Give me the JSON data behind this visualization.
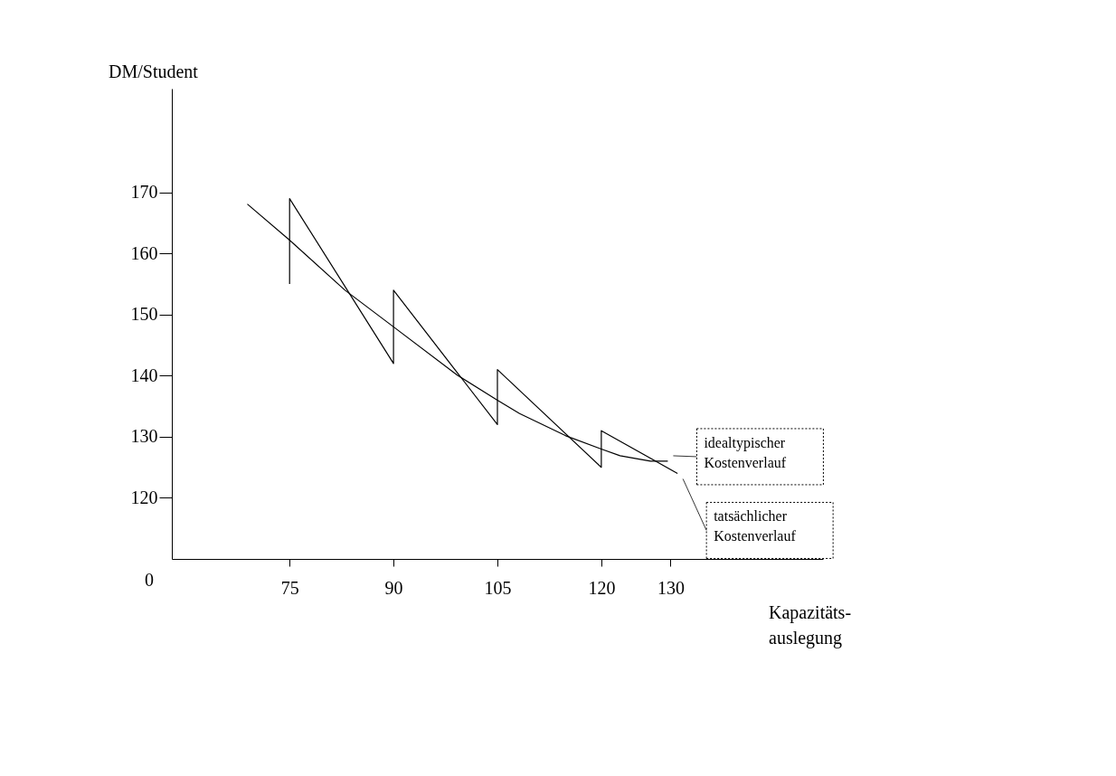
{
  "chart_data": {
    "type": "line",
    "xlabel": "Kapazitäts-\nauslegung",
    "ylabel": "DM/Student",
    "series": [
      {
        "name": "idealtypischer Kostenverlauf",
        "color": "#000000",
        "x": [
          68.9,
          75,
          83,
          90,
          99.2,
          105,
          108.2,
          114.8,
          120,
          122.7,
          127.1,
          129.6
        ],
        "values": [
          168.1,
          162.2,
          154.0,
          148.0,
          140.1,
          136.0,
          133.8,
          130.2,
          128.0,
          126.9,
          126.0,
          126.0
        ]
      },
      {
        "name": "tatsächlicher Kostenverlauf",
        "color": "#000000",
        "x": [
          75,
          75,
          90,
          90,
          105,
          105,
          120,
          120,
          131
        ],
        "values": [
          155,
          169,
          142,
          154,
          132,
          141,
          125,
          131,
          124
        ]
      }
    ],
    "xlim": [
      58,
      152
    ],
    "ylim": [
      110,
      187
    ],
    "xticks": [
      75,
      90,
      105,
      120,
      130
    ],
    "yticks": [
      120,
      130,
      140,
      150,
      160,
      170
    ],
    "annotations": [
      "0"
    ],
    "grid": false,
    "legend": "right",
    "marker": "none",
    "line_style": "solid"
  }
}
